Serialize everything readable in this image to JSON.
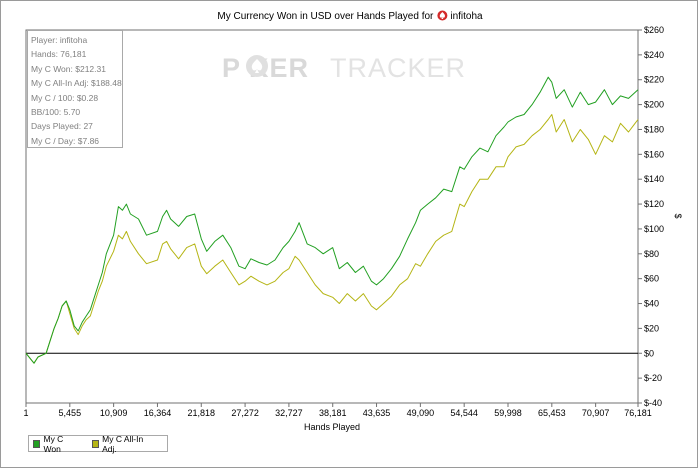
{
  "chart_data": {
    "type": "line",
    "title": "My Currency Won in USD over Hands Played for",
    "title_user": "infitoha",
    "xlabel": "Hands Played",
    "ylabel": "$",
    "xlim": [
      1,
      76181
    ],
    "ylim": [
      -40,
      260
    ],
    "x_ticks": [
      1,
      5455,
      10909,
      16364,
      21818,
      27272,
      32727,
      38181,
      43635,
      49090,
      54544,
      59998,
      65453,
      70907,
      76181
    ],
    "x_tick_labels": [
      "1",
      "5,455",
      "10,909",
      "16,364",
      "21,818",
      "27,272",
      "32,727",
      "38,181",
      "43,635",
      "49,090",
      "54,544",
      "59,998",
      "65,453",
      "70,907",
      "76,181"
    ],
    "y_ticks": [
      -40,
      -20,
      0,
      20,
      40,
      60,
      80,
      100,
      120,
      140,
      160,
      180,
      200,
      220,
      240,
      260
    ],
    "y_tick_labels": [
      "$-40",
      "$-20",
      "$0",
      "$20",
      "$40",
      "$60",
      "$80",
      "$100",
      "$120",
      "$140",
      "$160",
      "$180",
      "$200",
      "$220",
      "$240",
      "$260"
    ],
    "grid": false,
    "legend_position": "bottom-left",
    "series": [
      {
        "name": "My C Won",
        "color": "#22a022",
        "x": [
          1,
          1000,
          1500,
          2500,
          3000,
          3500,
          4000,
          4500,
          5000,
          5455,
          6000,
          6500,
          7000,
          7500,
          8000,
          8500,
          9000,
          9500,
          10000,
          10909,
          11500,
          12000,
          12500,
          13000,
          14000,
          15000,
          16364,
          17000,
          17500,
          18000,
          19000,
          20000,
          21000,
          21818,
          22500,
          23500,
          24500,
          25500,
          26500,
          27272,
          28000,
          29000,
          30000,
          31000,
          32000,
          32727,
          33500,
          34000,
          35000,
          36000,
          37000,
          38181,
          39000,
          40000,
          41000,
          42000,
          43000,
          43635,
          44500,
          45500,
          46500,
          47500,
          48500,
          49090,
          50000,
          51000,
          52000,
          53000,
          54000,
          54544,
          55500,
          56500,
          57500,
          58500,
          59500,
          59998,
          61000,
          62000,
          63000,
          64000,
          65000,
          65453,
          66000,
          67000,
          68000,
          69000,
          70000,
          70907,
          72000,
          73000,
          74000,
          75000,
          76181
        ],
        "y": [
          0,
          -8,
          -3,
          0,
          10,
          20,
          28,
          38,
          42,
          35,
          22,
          18,
          25,
          30,
          35,
          45,
          55,
          65,
          80,
          95,
          118,
          115,
          120,
          112,
          108,
          95,
          98,
          110,
          115,
          108,
          102,
          110,
          112,
          92,
          82,
          90,
          95,
          85,
          70,
          68,
          76,
          73,
          71,
          75,
          85,
          90,
          98,
          105,
          88,
          85,
          80,
          85,
          68,
          73,
          65,
          70,
          58,
          55,
          60,
          68,
          78,
          92,
          105,
          115,
          120,
          125,
          132,
          130,
          150,
          148,
          158,
          165,
          162,
          175,
          182,
          186,
          190,
          192,
          200,
          210,
          222,
          218,
          205,
          212,
          198,
          210,
          200,
          202,
          212,
          200,
          207,
          205,
          212
        ]
      },
      {
        "name": "My C All-In Adj.",
        "color": "#b5b515",
        "x": [
          1,
          1000,
          1500,
          2500,
          3000,
          3500,
          4000,
          4500,
          5000,
          5455,
          6000,
          6500,
          7000,
          7500,
          8000,
          8500,
          9000,
          9500,
          10000,
          10909,
          11500,
          12000,
          12500,
          13000,
          14000,
          15000,
          16364,
          17000,
          17500,
          18000,
          19000,
          20000,
          21000,
          21818,
          22500,
          23500,
          24500,
          25500,
          26500,
          27272,
          28000,
          29000,
          30000,
          31000,
          32000,
          32727,
          33500,
          34000,
          35000,
          36000,
          37000,
          38181,
          39000,
          40000,
          41000,
          42000,
          43000,
          43635,
          44500,
          45500,
          46500,
          47500,
          48500,
          49090,
          50000,
          51000,
          52000,
          53000,
          54000,
          54544,
          55500,
          56500,
          57500,
          58500,
          59500,
          59998,
          61000,
          62000,
          63000,
          64000,
          65000,
          65453,
          66000,
          67000,
          68000,
          69000,
          70000,
          70907,
          72000,
          73000,
          74000,
          75000,
          76181
        ],
        "y": [
          0,
          -8,
          -3,
          0,
          10,
          20,
          28,
          38,
          42,
          32,
          20,
          15,
          22,
          27,
          30,
          40,
          50,
          58,
          70,
          82,
          95,
          92,
          98,
          90,
          80,
          72,
          75,
          88,
          90,
          84,
          76,
          85,
          88,
          70,
          64,
          70,
          75,
          65,
          55,
          58,
          62,
          58,
          55,
          58,
          65,
          68,
          78,
          75,
          65,
          55,
          48,
          45,
          40,
          48,
          42,
          48,
          38,
          35,
          40,
          46,
          55,
          60,
          72,
          70,
          80,
          90,
          95,
          98,
          120,
          118,
          130,
          140,
          140,
          150,
          150,
          158,
          166,
          168,
          175,
          180,
          188,
          192,
          178,
          188,
          170,
          180,
          172,
          160,
          175,
          170,
          185,
          178,
          188
        ]
      }
    ]
  },
  "stats": [
    "Player: infitoha",
    "Hands: 76,181",
    "My C Won: $212.31",
    "My C All-In Adj: $188.48",
    "My C / 100: $0.28",
    "BB/100: 5.70",
    "Days Played: 27",
    "My C / Day: $7.86"
  ],
  "watermark": {
    "left": "P  KER",
    "right": "TRACKER"
  },
  "legend": {
    "items": [
      {
        "label": "My C Won",
        "color": "#22a022"
      },
      {
        "label": "My C All-In Adj.",
        "color": "#b5b515"
      }
    ]
  }
}
